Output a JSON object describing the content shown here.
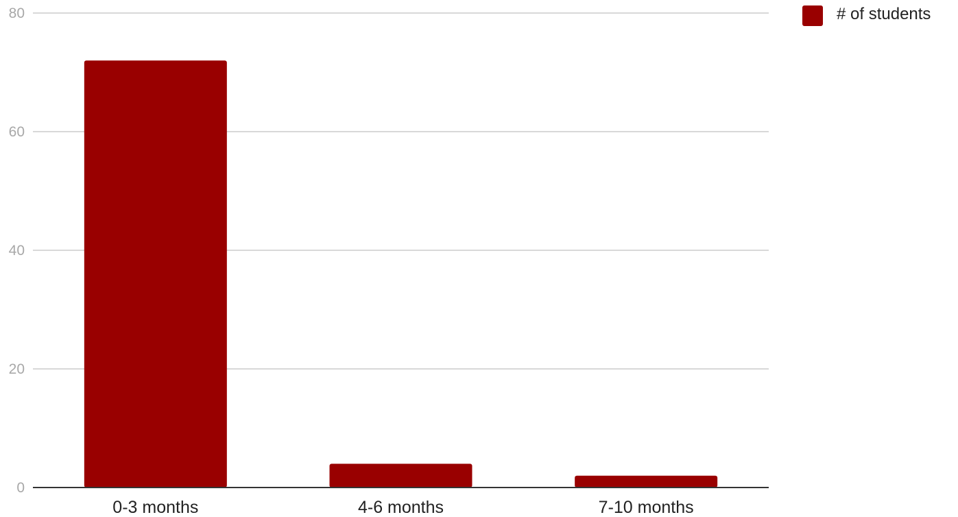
{
  "chart_data": {
    "type": "bar",
    "title": "",
    "xlabel": "",
    "ylabel": "",
    "categories": [
      "0-3 months",
      "4-6 months",
      "7-10 months"
    ],
    "series": [
      {
        "name": "# of students",
        "values": [
          72,
          4,
          2
        ],
        "color": "#990000"
      }
    ],
    "ylim": [
      0,
      80
    ],
    "yticks": [
      0,
      20,
      40,
      60,
      80
    ],
    "ytick_labels": [
      "0",
      "20",
      "40",
      "60",
      "80"
    ],
    "grid": true,
    "legend_position": "top-right"
  }
}
